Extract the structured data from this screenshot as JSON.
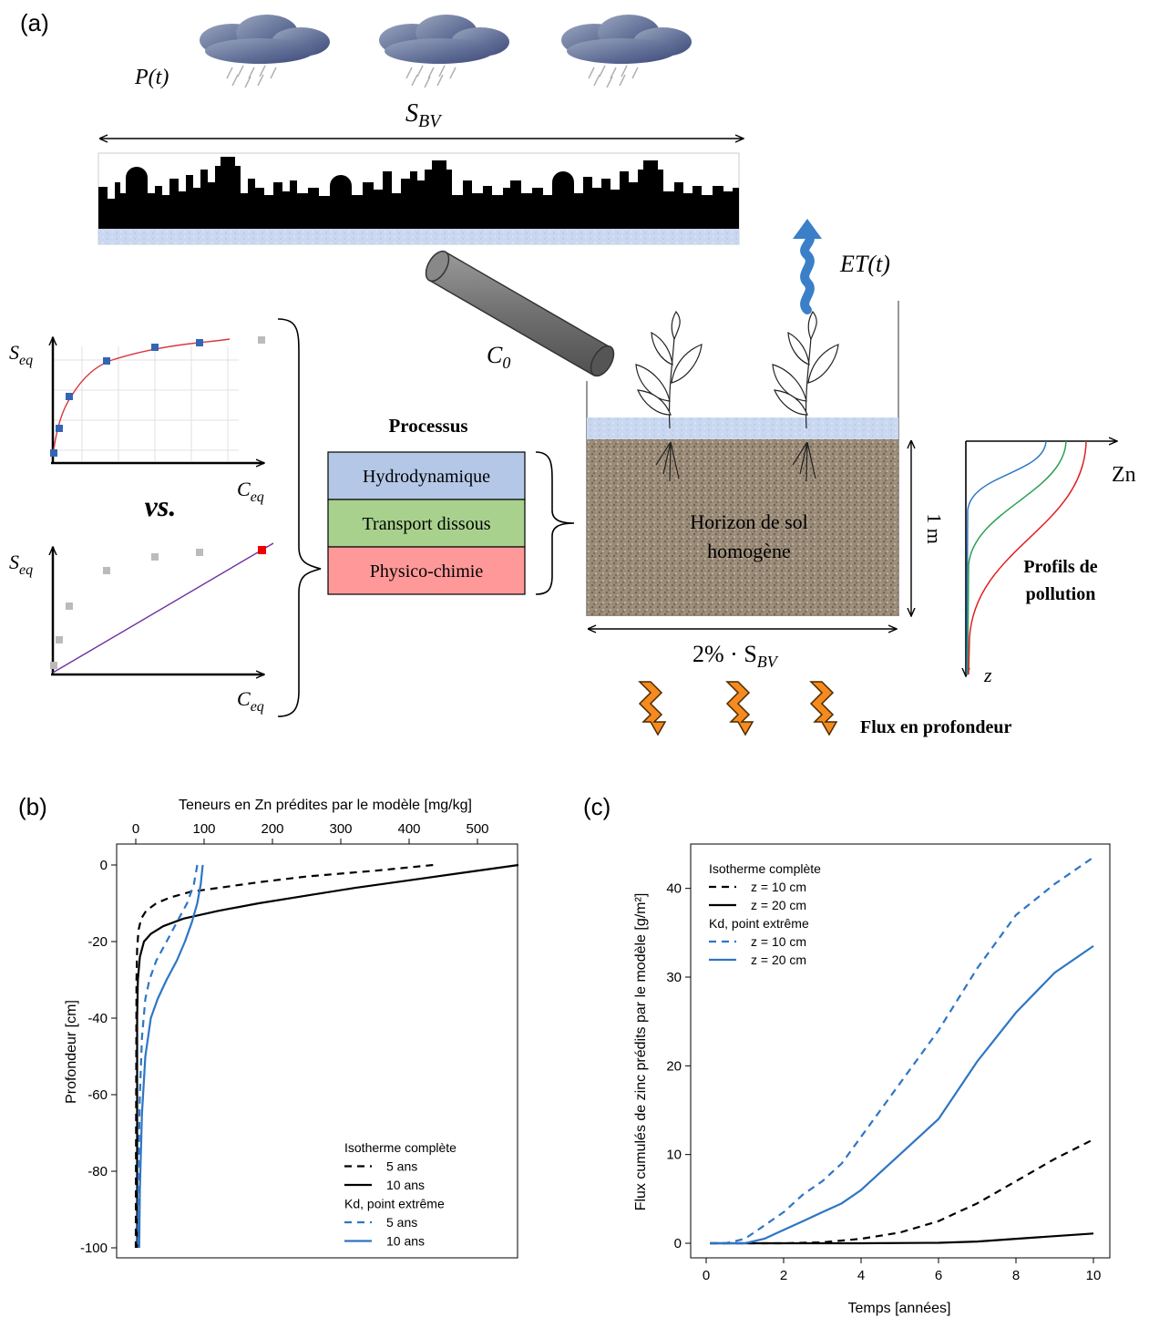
{
  "panel_a": {
    "label": "(a)",
    "precip_label": "P(t)",
    "catchment_label_main": "S",
    "catchment_label_sub": "BV",
    "et_label": "ET(t)",
    "c0_main": "C",
    "c0_sub": "0",
    "processes_title": "Processus",
    "processes": [
      {
        "label": "Hydrodynamique",
        "color": "#b4c7e7"
      },
      {
        "label": "Transport dissous",
        "color": "#a9d18e"
      },
      {
        "label": "Physico-chimie",
        "color": "#ff9999"
      }
    ],
    "vs_label": "vs.",
    "isotherm_y_main": "S",
    "isotherm_y_sub": "eq",
    "isotherm_x_main": "C",
    "isotherm_x_sub": "eq",
    "soil_label_line1": "Horizon de sol",
    "soil_label_line2": "homogène",
    "depth_label": "1 m",
    "area_label_prefix": "2% · S",
    "area_label_sub": "BV",
    "profile_x_label": "Zn",
    "profile_y_label": "z",
    "profile_title_line1": "Profils de",
    "profile_title_line2": "pollution",
    "deep_flux_label": "Flux en profondeur"
  },
  "chart_data": [
    {
      "type": "line",
      "panel_label": "(b)",
      "title": "",
      "xlabel": "Teneurs en Zn prédites par le modèle [mg/kg]",
      "ylabel": "Profondeur [cm]",
      "xlim": [
        0,
        560
      ],
      "ylim": [
        -100,
        0
      ],
      "xticks": [
        0,
        100,
        200,
        300,
        400,
        500
      ],
      "yticks": [
        0,
        -20,
        -40,
        -60,
        -80,
        -100
      ],
      "grid": false,
      "legend_position": "bottom-right",
      "legend": [
        {
          "type": "header",
          "text": "Isotherme complète"
        },
        {
          "type": "entry",
          "text": "5 ans",
          "series": 0
        },
        {
          "type": "entry",
          "text": "10 ans",
          "series": 1
        },
        {
          "type": "header",
          "text": "Kd, point extrême"
        },
        {
          "type": "entry",
          "text": "5 ans",
          "series": 2
        },
        {
          "type": "entry",
          "text": "10 ans",
          "series": 3
        }
      ],
      "series": [
        {
          "color": "#000000",
          "dash": true,
          "x": [
            435,
            350,
            250,
            180,
            120,
            80,
            50,
            30,
            15,
            8,
            4,
            2,
            1,
            0
          ],
          "y": [
            0,
            -1.5,
            -3,
            -4.5,
            -6,
            -7,
            -8.5,
            -10,
            -12,
            -14,
            -17,
            -22,
            -30,
            -100
          ]
        },
        {
          "color": "#000000",
          "dash": false,
          "x": [
            560,
            480,
            400,
            320,
            250,
            180,
            120,
            70,
            40,
            22,
            12,
            6,
            3,
            2,
            2
          ],
          "y": [
            0,
            -2,
            -4,
            -6,
            -8,
            -10,
            -12,
            -14,
            -16,
            -18,
            -20,
            -24,
            -30,
            -40,
            -100
          ]
        },
        {
          "color": "#2e75c5",
          "dash": true,
          "x": [
            90,
            85,
            75,
            60,
            45,
            30,
            20,
            14,
            9,
            6,
            4,
            3
          ],
          "y": [
            0,
            -5,
            -10,
            -15,
            -20,
            -25,
            -30,
            -35,
            -45,
            -60,
            -80,
            -100
          ]
        },
        {
          "color": "#2e75c5",
          "dash": false,
          "x": [
            98,
            95,
            90,
            82,
            72,
            60,
            45,
            32,
            22,
            14,
            9,
            6,
            5
          ],
          "y": [
            0,
            -5,
            -10,
            -15,
            -20,
            -25,
            -30,
            -35,
            -40,
            -50,
            -65,
            -85,
            -100
          ]
        }
      ]
    },
    {
      "type": "line",
      "panel_label": "(c)",
      "title": "",
      "xlabel": "Temps [années]",
      "ylabel": "Flux cumulés de zinc prédits par le modèle [g/m²]",
      "xlim": [
        0,
        10
      ],
      "ylim": [
        0,
        45
      ],
      "xticks": [
        0,
        2,
        4,
        6,
        8,
        10
      ],
      "yticks": [
        0,
        10,
        20,
        30,
        40
      ],
      "grid": false,
      "legend_position": "top-left",
      "legend": [
        {
          "type": "header",
          "text": "Isotherme complète"
        },
        {
          "type": "entry",
          "text": "z = 10 cm",
          "series": 0
        },
        {
          "type": "entry",
          "text": "z = 20 cm",
          "series": 1
        },
        {
          "type": "header",
          "text": "Kd, point extrême"
        },
        {
          "type": "entry",
          "text": "z = 10 cm",
          "series": 2
        },
        {
          "type": "entry",
          "text": "z = 20 cm",
          "series": 3
        }
      ],
      "series": [
        {
          "color": "#000000",
          "dash": true,
          "x": [
            0.1,
            2,
            3,
            4,
            5,
            6,
            7,
            8,
            9,
            10
          ],
          "y": [
            0,
            0,
            0.1,
            0.5,
            1.2,
            2.5,
            4.5,
            7,
            9.5,
            11.7
          ]
        },
        {
          "color": "#000000",
          "dash": false,
          "x": [
            0.1,
            2,
            4,
            6,
            7,
            8,
            9,
            10
          ],
          "y": [
            0,
            0,
            0,
            0.05,
            0.2,
            0.5,
            0.8,
            1.1
          ]
        },
        {
          "color": "#2e75c5",
          "dash": true,
          "x": [
            0.1,
            0.5,
            1,
            1.5,
            2,
            2.5,
            3,
            3.5,
            4,
            5,
            6,
            7,
            8,
            9,
            10
          ],
          "y": [
            0,
            0,
            0.5,
            2,
            3.5,
            5.5,
            7,
            9,
            12,
            18,
            24,
            31,
            37,
            40.5,
            43.5
          ]
        },
        {
          "color": "#2e75c5",
          "dash": false,
          "x": [
            0.1,
            1,
            1.5,
            2,
            2.5,
            3,
            3.5,
            4,
            5,
            6,
            7,
            8,
            9,
            10
          ],
          "y": [
            0,
            0,
            0.5,
            1.5,
            2.5,
            3.5,
            4.5,
            6,
            10,
            14,
            20.5,
            26,
            30.5,
            33.5
          ]
        }
      ]
    }
  ]
}
